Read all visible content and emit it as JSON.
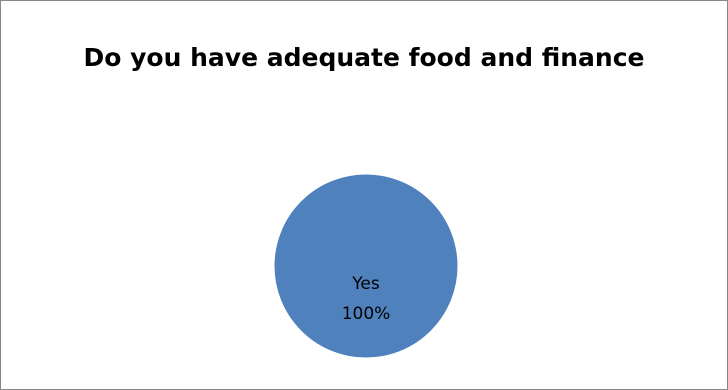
{
  "chart_data": {
    "type": "pie",
    "title": "Do you have adequate food and finance",
    "slices": [
      {
        "label": "Yes",
        "value": 100,
        "value_label": "100%",
        "color": "#4f81bd"
      }
    ],
    "legend": "none",
    "data_labels": "inside"
  }
}
